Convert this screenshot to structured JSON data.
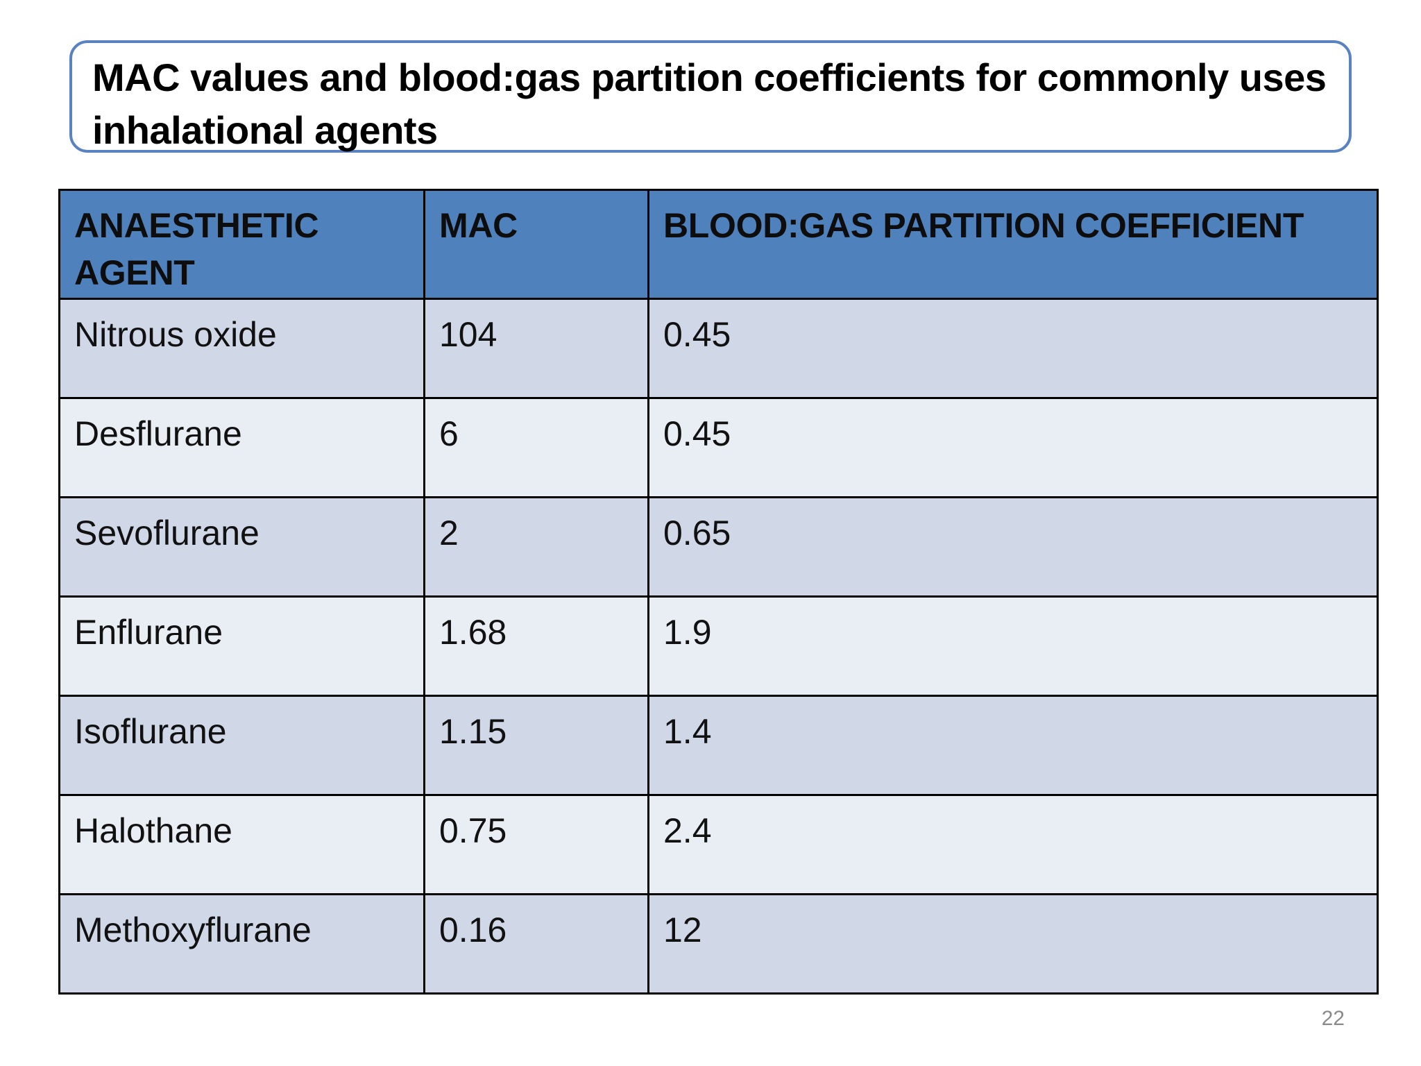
{
  "title": "MAC values and blood:gas partition coefficients for commonly uses inhalational agents",
  "table": {
    "headers": [
      "ANAESTHETIC AGENT",
      "MAC",
      "BLOOD:GAS PARTITION COEFFICIENT"
    ],
    "rows": [
      [
        "Nitrous oxide",
        "104",
        "0.45"
      ],
      [
        "Desflurane",
        "6",
        "0.45"
      ],
      [
        "Sevoflurane",
        "2",
        "0.65"
      ],
      [
        "Enflurane",
        "1.68",
        "1.9"
      ],
      [
        "Isoflurane",
        "1.15",
        "1.4"
      ],
      [
        "Halothane",
        "0.75",
        "2.4"
      ],
      [
        "Methoxyflurane",
        "0.16",
        "12"
      ]
    ]
  },
  "slide_number": "22",
  "colors": {
    "title_border": "#5b82c0",
    "header_bg": "#4f81bd",
    "row_odd_bg": "#d0d8e8",
    "row_even_bg": "#e9edf4"
  }
}
